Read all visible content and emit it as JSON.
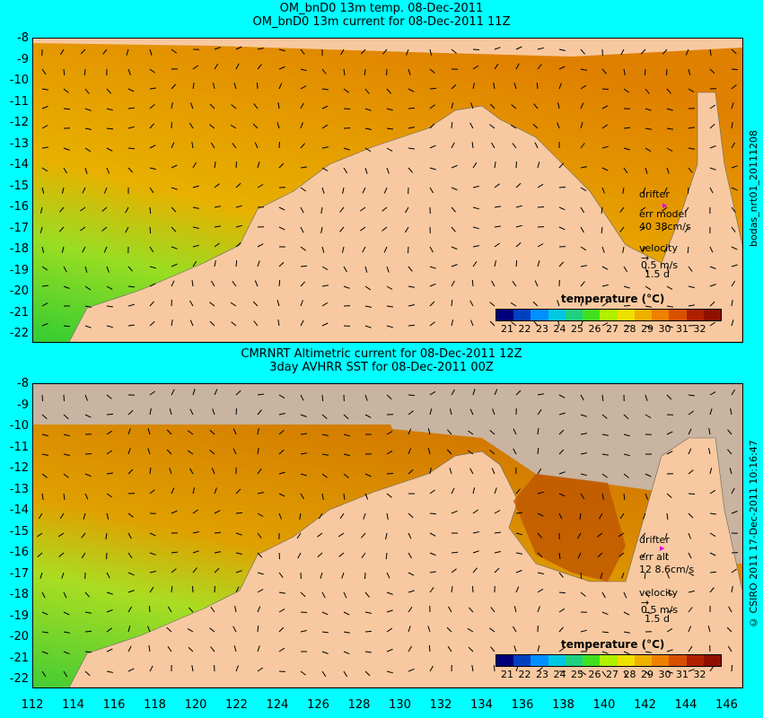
{
  "top": {
    "title1": "OM_bnD0 13m temp. 08-Dec-2011",
    "title2": "OM_bnD0 13m current for 08-Dec-2011 11Z",
    "side_label": "bodas_nrt01_20111208",
    "drifter": "drifter",
    "err_label": "err model",
    "err_value": "40 38cm/s",
    "velocity": "velocity",
    "vel_scale": "0.5 m/s",
    "vel_days": "1.5 d",
    "colorbar_title": "temperature (°C)"
  },
  "bottom": {
    "title1": "CMRNRT Altimetric current for 08-Dec-2011 12Z",
    "title2": "3day AVHRR SST for 08-Dec-2011 00Z",
    "side_label": "© CSIRO 2011   17-Dec-2011 10:16:47",
    "drifter": "drifter",
    "err_label": "err alt",
    "err_value": "12 8.6cm/s",
    "velocity": "velocity",
    "vel_scale": "0.5 m/s",
    "vel_days": "1.5 d",
    "colorbar_title": "temperature (°C)"
  },
  "y_ticks": [
    "-8",
    "-9",
    "-10",
    "-11",
    "-12",
    "-13",
    "-14",
    "-15",
    "-16",
    "-17",
    "-18",
    "-19",
    "-20",
    "-21",
    "-22"
  ],
  "x_ticks": [
    "112",
    "114",
    "116",
    "118",
    "120",
    "122",
    "124",
    "126",
    "128",
    "130",
    "132",
    "134",
    "136",
    "138",
    "140",
    "142",
    "144",
    "146"
  ],
  "colorbar_ticks": [
    "21",
    "22",
    "23",
    "24",
    "25",
    "26",
    "27",
    "28",
    "29",
    "30",
    "31",
    "32"
  ],
  "colors": {
    "background": "#00ffff",
    "land": "#f8c9a0",
    "cloud": "#c8b4a0",
    "warm": "#e08a00",
    "cool": "#44cc33"
  }
}
